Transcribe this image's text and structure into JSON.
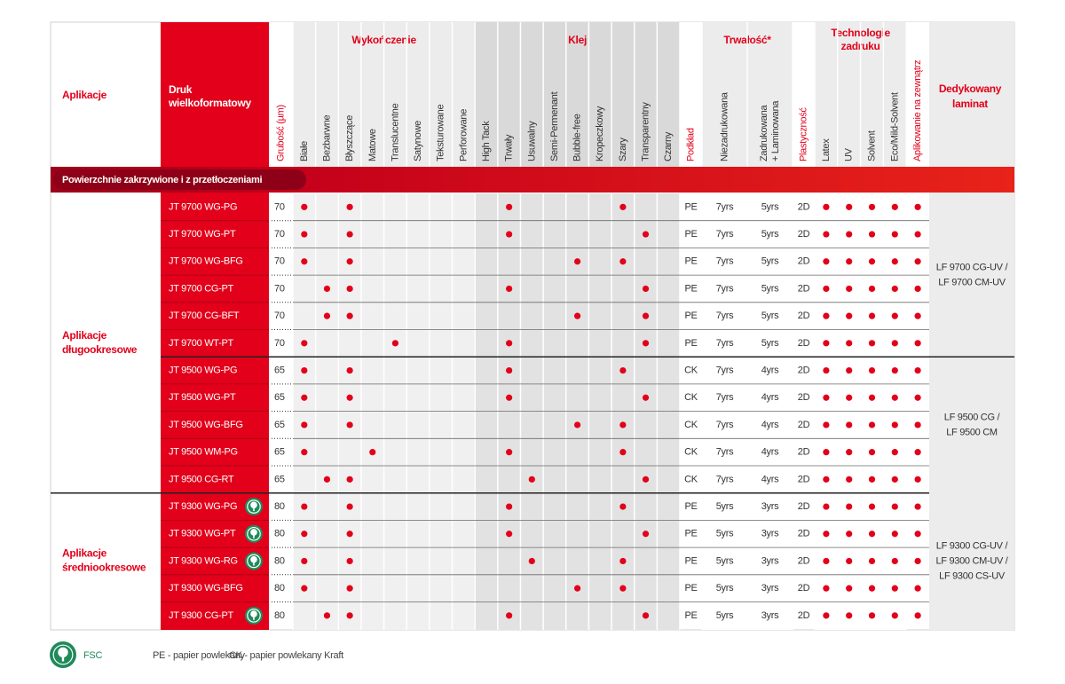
{
  "header": {
    "applications": "Aplikacje",
    "print": [
      "Druk",
      "wielkoformatowy"
    ],
    "laminate": [
      "Dedykowany",
      "laminat"
    ],
    "groups": [
      {
        "background": "#ffffff",
        "columns": [
          {
            "label": [
              "Grubość (µm)"
            ],
            "color": "#e2001a"
          }
        ]
      },
      {
        "label": [
          "Wykończenie"
        ],
        "background": "#ececec",
        "body": "#f0f0f0",
        "columns": [
          {
            "label": [
              "Białe"
            ],
            "color": "#333333"
          },
          {
            "label": [
              "Bezbarwne"
            ],
            "color": "#333333"
          },
          {
            "label": [
              "Błyszczące"
            ],
            "color": "#333333"
          },
          {
            "label": [
              "Matowe"
            ],
            "color": "#333333"
          },
          {
            "label": [
              "Translucentne"
            ],
            "color": "#333333"
          },
          {
            "label": [
              "Satynowe"
            ],
            "color": "#333333"
          },
          {
            "label": [
              "Teksturowane"
            ],
            "color": "#333333"
          },
          {
            "label": [
              "Perforowane"
            ],
            "color": "#333333"
          }
        ]
      },
      {
        "label": [
          "Klej"
        ],
        "background": "#d9d9d9",
        "body": "#e2e2e2",
        "columns": [
          {
            "label": [
              "High Tack"
            ],
            "color": "#333333"
          },
          {
            "label": [
              "Trwały"
            ],
            "color": "#333333"
          },
          {
            "label": [
              "Usuwalny"
            ],
            "color": "#333333"
          },
          {
            "label": [
              "Semi-Permenant"
            ],
            "color": "#333333"
          },
          {
            "label": [
              "Bubble-free"
            ],
            "color": "#333333"
          },
          {
            "label": [
              "Kropeczkowy"
            ],
            "color": "#333333"
          },
          {
            "label": [
              "Szary"
            ],
            "color": "#333333"
          },
          {
            "label": [
              "Transparentny"
            ],
            "color": "#333333"
          },
          {
            "label": [
              "Czarny"
            ],
            "color": "#333333"
          }
        ]
      },
      {
        "background": "#ffffff",
        "columns": [
          {
            "label": [
              "Podkład"
            ],
            "color": "#e2001a"
          }
        ]
      },
      {
        "label": [
          "Trwałość*"
        ],
        "background": "#ececec",
        "body": "#ffffff",
        "columns": [
          {
            "label": [
              "Niezadrukowana"
            ],
            "color": "#333333"
          },
          {
            "label": [
              "Zadrukowana",
              "+ Laminowana"
            ],
            "color": "#333333"
          }
        ]
      },
      {
        "background": "#ffffff",
        "columns": [
          {
            "label": [
              "Plastyczność"
            ],
            "color": "#e2001a"
          }
        ]
      },
      {
        "label": [
          "Technologie",
          "zadruku"
        ],
        "background": "#ececec",
        "body": "#ffffff",
        "columns": [
          {
            "label": [
              "Latex"
            ],
            "color": "#333333"
          },
          {
            "label": [
              "UV"
            ],
            "color": "#333333"
          },
          {
            "label": [
              "Solvent"
            ],
            "color": "#333333"
          },
          {
            "label": [
              "Eco/Mild-Solvent"
            ],
            "color": "#333333"
          }
        ]
      },
      {
        "background": "#ffffff",
        "columns": [
          {
            "label": [
              "Aplikowanie na zewnątrz"
            ],
            "color": "#e2001a"
          }
        ]
      }
    ]
  },
  "section": "Powierzchnie zakrzywione i z przetłoczeniami",
  "applications": [
    {
      "label": [
        "Aplikacje",
        "długookresowe"
      ],
      "laminate_groups": [
        {
          "label": [
            "LF 9700 CG-UV /",
            "LF 9700 CM-UV"
          ],
          "rows": [
            {
              "name": "JT 9700 WG-PG",
              "thickness": "70",
              "liner": "PE",
              "unprinted": "7yrs",
              "printed": "5yrs",
              "plasticity": "2D",
              "dots": [
                1,
                3,
                10,
                15,
                22,
                23,
                24,
                25,
                26
              ],
              "fsc": false
            },
            {
              "name": "JT 9700 WG-PT",
              "thickness": "70",
              "liner": "PE",
              "unprinted": "7yrs",
              "printed": "5yrs",
              "plasticity": "2D",
              "dots": [
                1,
                3,
                10,
                16,
                22,
                23,
                24,
                25,
                26
              ],
              "fsc": false
            },
            {
              "name": "JT 9700 WG-BFG",
              "thickness": "70",
              "liner": "PE",
              "unprinted": "7yrs",
              "printed": "5yrs",
              "plasticity": "2D",
              "dots": [
                1,
                3,
                13,
                15,
                22,
                23,
                24,
                25,
                26
              ],
              "fsc": false
            },
            {
              "name": "JT 9700 CG-PT",
              "thickness": "70",
              "liner": "PE",
              "unprinted": "7yrs",
              "printed": "5yrs",
              "plasticity": "2D",
              "dots": [
                2,
                3,
                10,
                16,
                22,
                23,
                24,
                25,
                26
              ],
              "fsc": false
            },
            {
              "name": "JT 9700 CG-BFT",
              "thickness": "70",
              "liner": "PE",
              "unprinted": "7yrs",
              "printed": "5yrs",
              "plasticity": "2D",
              "dots": [
                2,
                3,
                13,
                16,
                22,
                23,
                24,
                25,
                26
              ],
              "fsc": false
            },
            {
              "name": "JT 9700 WT-PT",
              "thickness": "70",
              "liner": "PE",
              "unprinted": "7yrs",
              "printed": "5yrs",
              "plasticity": "2D",
              "dots": [
                1,
                5,
                10,
                16,
                22,
                23,
                24,
                25,
                26
              ],
              "fsc": false
            }
          ]
        },
        {
          "label": [
            "LF 9500 CG /",
            "LF 9500 CM"
          ],
          "rows": [
            {
              "name": "JT 9500 WG-PG",
              "thickness": "65",
              "liner": "CK",
              "unprinted": "7yrs",
              "printed": "4yrs",
              "plasticity": "2D",
              "dots": [
                1,
                3,
                10,
                15,
                22,
                23,
                24,
                25,
                26
              ],
              "fsc": false
            },
            {
              "name": "JT 9500 WG-PT",
              "thickness": "65",
              "liner": "CK",
              "unprinted": "7yrs",
              "printed": "4yrs",
              "plasticity": "2D",
              "dots": [
                1,
                3,
                10,
                16,
                22,
                23,
                24,
                25,
                26
              ],
              "fsc": false
            },
            {
              "name": "JT 9500 WG-BFG",
              "thickness": "65",
              "liner": "CK",
              "unprinted": "7yrs",
              "printed": "4yrs",
              "plasticity": "2D",
              "dots": [
                1,
                3,
                13,
                15,
                22,
                23,
                24,
                25,
                26
              ],
              "fsc": false
            },
            {
              "name": "JT 9500 WM-PG",
              "thickness": "65",
              "liner": "CK",
              "unprinted": "7yrs",
              "printed": "4yrs",
              "plasticity": "2D",
              "dots": [
                1,
                4,
                10,
                15,
                22,
                23,
                24,
                25,
                26
              ],
              "fsc": false
            },
            {
              "name": "JT 9500 CG-RT",
              "thickness": "65",
              "liner": "CK",
              "unprinted": "7yrs",
              "printed": "4yrs",
              "plasticity": "2D",
              "dots": [
                2,
                3,
                11,
                16,
                22,
                23,
                24,
                25,
                26
              ],
              "fsc": false
            }
          ]
        }
      ]
    },
    {
      "label": [
        "Aplikacje",
        "średniookresowe"
      ],
      "laminate_groups": [
        {
          "label": [
            "LF 9300 CG-UV /",
            "LF 9300 CM-UV /",
            "LF 9300 CS-UV"
          ],
          "rows": [
            {
              "name": "JT 9300 WG-PG",
              "thickness": "80",
              "liner": "PE",
              "unprinted": "5yrs",
              "printed": "3yrs",
              "plasticity": "2D",
              "dots": [
                1,
                3,
                10,
                15,
                22,
                23,
                24,
                25,
                26
              ],
              "fsc": true
            },
            {
              "name": "JT 9300 WG-PT",
              "thickness": "80",
              "liner": "PE",
              "unprinted": "5yrs",
              "printed": "3yrs",
              "plasticity": "2D",
              "dots": [
                1,
                3,
                10,
                16,
                22,
                23,
                24,
                25,
                26
              ],
              "fsc": true
            },
            {
              "name": "JT 9300 WG-RG",
              "thickness": "80",
              "liner": "PE",
              "unprinted": "5yrs",
              "printed": "3yrs",
              "plasticity": "2D",
              "dots": [
                1,
                3,
                11,
                15,
                22,
                23,
                24,
                25,
                26
              ],
              "fsc": true
            },
            {
              "name": "JT 9300 WG-BFG",
              "thickness": "80",
              "liner": "PE",
              "unprinted": "5yrs",
              "printed": "3yrs",
              "plasticity": "2D",
              "dots": [
                1,
                3,
                13,
                15,
                22,
                23,
                24,
                25,
                26
              ],
              "fsc": false
            },
            {
              "name": "JT 9300 CG-PT",
              "thickness": "80",
              "liner": "PE",
              "unprinted": "5yrs",
              "printed": "3yrs",
              "plasticity": "2D",
              "dots": [
                2,
                3,
                10,
                16,
                22,
                23,
                24,
                25,
                26
              ],
              "fsc": true
            }
          ]
        }
      ]
    }
  ],
  "legend": {
    "fsc": "FSC",
    "items": [
      "PE - papier powlekany",
      "CK - papier powlekany Kraft"
    ]
  }
}
